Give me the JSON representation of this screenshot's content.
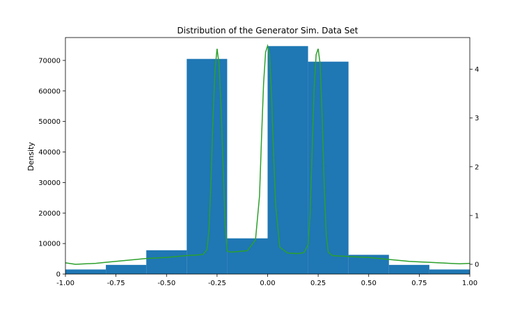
{
  "chart_data": {
    "type": "bar",
    "title": "Distribution of the Generator Sim. Data Set",
    "xlabel": "",
    "ylabel": "Density",
    "y2label": "",
    "xlim": [
      -1.0,
      1.0
    ],
    "ylim": [
      0,
      77500
    ],
    "y2lim": [
      -0.2,
      4.65
    ],
    "x_ticks": [
      "-1.00",
      "-0.75",
      "-0.50",
      "-0.25",
      "0.00",
      "0.25",
      "0.50",
      "0.75",
      "1.00"
    ],
    "y_ticks": [
      "0",
      "10000",
      "20000",
      "30000",
      "40000",
      "50000",
      "60000",
      "70000"
    ],
    "y2_ticks": [
      "0",
      "1",
      "2",
      "3",
      "4"
    ],
    "grid": false,
    "legend": "none",
    "colors": {
      "histogram": "#1f77b4",
      "density_line": "#2ca02c"
    },
    "series": [
      {
        "type": "histogram",
        "axis": "left",
        "bin_edges": [
          -1.0,
          -0.8,
          -0.6,
          -0.4,
          -0.2,
          0.0,
          0.2,
          0.4,
          0.6,
          0.8,
          1.0
        ],
        "values": [
          1500,
          3000,
          7800,
          70500,
          11700,
          74700,
          69600,
          6300,
          3000,
          1500
        ]
      },
      {
        "type": "line",
        "axis": "right",
        "x": [
          -1.0,
          -0.95,
          -0.9,
          -0.85,
          -0.8,
          -0.75,
          -0.7,
          -0.65,
          -0.6,
          -0.55,
          -0.5,
          -0.45,
          -0.4,
          -0.35,
          -0.32,
          -0.3,
          -0.29,
          -0.28,
          -0.27,
          -0.26,
          -0.25,
          -0.24,
          -0.23,
          -0.22,
          -0.21,
          -0.2,
          -0.18,
          -0.15,
          -0.1,
          -0.06,
          -0.04,
          -0.03,
          -0.02,
          -0.01,
          0.0,
          0.01,
          0.02,
          0.03,
          0.04,
          0.06,
          0.1,
          0.15,
          0.18,
          0.2,
          0.21,
          0.22,
          0.23,
          0.24,
          0.25,
          0.26,
          0.27,
          0.28,
          0.29,
          0.3,
          0.32,
          0.35,
          0.4,
          0.45,
          0.5,
          0.55,
          0.6,
          0.65,
          0.7,
          0.75,
          0.8,
          0.85,
          0.9,
          0.95,
          1.0
        ],
        "y": [
          0.03,
          0.0,
          0.01,
          0.02,
          0.04,
          0.06,
          0.08,
          0.1,
          0.12,
          0.13,
          0.14,
          0.16,
          0.18,
          0.19,
          0.2,
          0.3,
          0.7,
          1.7,
          3.0,
          4.0,
          4.42,
          4.1,
          3.2,
          2.0,
          0.8,
          0.27,
          0.25,
          0.26,
          0.28,
          0.5,
          1.4,
          2.6,
          3.7,
          4.35,
          4.48,
          4.3,
          3.4,
          2.2,
          1.2,
          0.35,
          0.23,
          0.22,
          0.24,
          0.4,
          1.0,
          2.3,
          3.6,
          4.3,
          4.42,
          4.1,
          3.0,
          1.6,
          0.6,
          0.25,
          0.18,
          0.17,
          0.16,
          0.15,
          0.14,
          0.12,
          0.1,
          0.08,
          0.06,
          0.05,
          0.04,
          0.03,
          0.02,
          0.01,
          0.02
        ]
      }
    ]
  }
}
